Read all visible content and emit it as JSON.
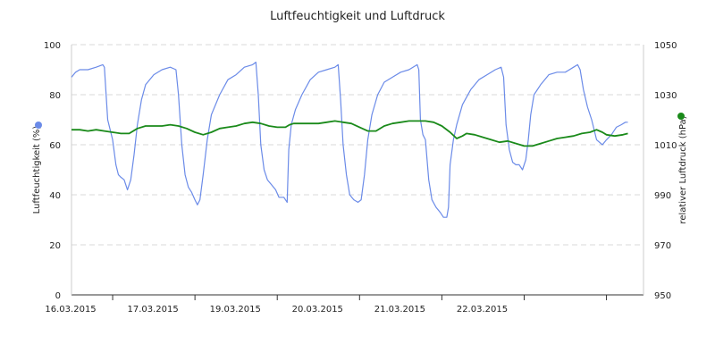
{
  "chart_data": {
    "type": "line",
    "title": "Luftfeuchtigkeit und Luftdruck",
    "y_left": {
      "label": "Luftfeuchtigkeit (%)",
      "range": [
        0,
        100
      ],
      "ticks": [
        "0",
        "20",
        "40",
        "60",
        "80",
        "100"
      ],
      "color": "#6b8be8"
    },
    "y_right": {
      "label": "relativer Luftdruck (hPa)",
      "range": [
        950,
        1050
      ],
      "ticks": [
        "950",
        "970",
        "990",
        "1010",
        "1030",
        "1050"
      ],
      "color": "#1a8a1a"
    },
    "x_range": [
      0,
      6.95
    ],
    "x_ticks": [
      {
        "x": 0.5,
        "label": "16.03.2015"
      },
      {
        "x": 1.5,
        "label": "17.03.2015"
      },
      {
        "x": 2.5,
        "label": "19.03.2015"
      },
      {
        "x": 3.5,
        "label": "20.03.2015"
      },
      {
        "x": 4.5,
        "label": "21.03.2015"
      },
      {
        "x": 5.5,
        "label": "22.03.2015"
      }
    ],
    "grid": "horizontal-dashed",
    "series": [
      {
        "axis": "left",
        "color": "#6b8be8",
        "points": [
          [
            0.0,
            87
          ],
          [
            0.05,
            89
          ],
          [
            0.1,
            90
          ],
          [
            0.2,
            90
          ],
          [
            0.3,
            91
          ],
          [
            0.38,
            92
          ],
          [
            0.4,
            91
          ],
          [
            0.44,
            70
          ],
          [
            0.5,
            62
          ],
          [
            0.54,
            52
          ],
          [
            0.57,
            48
          ],
          [
            0.6,
            47
          ],
          [
            0.64,
            46
          ],
          [
            0.68,
            42
          ],
          [
            0.72,
            46
          ],
          [
            0.76,
            56
          ],
          [
            0.8,
            68
          ],
          [
            0.85,
            78
          ],
          [
            0.9,
            84
          ],
          [
            1.0,
            88
          ],
          [
            1.1,
            90
          ],
          [
            1.2,
            91
          ],
          [
            1.27,
            90
          ],
          [
            1.3,
            80
          ],
          [
            1.34,
            60
          ],
          [
            1.38,
            48
          ],
          [
            1.42,
            43
          ],
          [
            1.46,
            41
          ],
          [
            1.5,
            38
          ],
          [
            1.53,
            36
          ],
          [
            1.56,
            38
          ],
          [
            1.6,
            48
          ],
          [
            1.65,
            62
          ],
          [
            1.7,
            72
          ],
          [
            1.8,
            80
          ],
          [
            1.9,
            86
          ],
          [
            2.0,
            88
          ],
          [
            2.1,
            91
          ],
          [
            2.2,
            92
          ],
          [
            2.24,
            93
          ],
          [
            2.27,
            80
          ],
          [
            2.3,
            60
          ],
          [
            2.34,
            50
          ],
          [
            2.38,
            46
          ],
          [
            2.43,
            44
          ],
          [
            2.48,
            42
          ],
          [
            2.52,
            39
          ],
          [
            2.58,
            39
          ],
          [
            2.62,
            37
          ],
          [
            2.64,
            58
          ],
          [
            2.67,
            68
          ],
          [
            2.72,
            74
          ],
          [
            2.8,
            80
          ],
          [
            2.9,
            86
          ],
          [
            3.0,
            89
          ],
          [
            3.1,
            90
          ],
          [
            3.2,
            91
          ],
          [
            3.24,
            92
          ],
          [
            3.27,
            78
          ],
          [
            3.3,
            60
          ],
          [
            3.34,
            48
          ],
          [
            3.38,
            40
          ],
          [
            3.43,
            38
          ],
          [
            3.48,
            37
          ],
          [
            3.52,
            38
          ],
          [
            3.56,
            48
          ],
          [
            3.6,
            62
          ],
          [
            3.65,
            72
          ],
          [
            3.72,
            80
          ],
          [
            3.8,
            85
          ],
          [
            3.9,
            87
          ],
          [
            4.0,
            89
          ],
          [
            4.1,
            90
          ],
          [
            4.2,
            92
          ],
          [
            4.22,
            90
          ],
          [
            4.24,
            70
          ],
          [
            4.27,
            64
          ],
          [
            4.3,
            62
          ],
          [
            4.34,
            46
          ],
          [
            4.38,
            38
          ],
          [
            4.43,
            35
          ],
          [
            4.48,
            33
          ],
          [
            4.52,
            31
          ],
          [
            4.56,
            31
          ],
          [
            4.58,
            35
          ],
          [
            4.6,
            52
          ],
          [
            4.64,
            62
          ],
          [
            4.68,
            68
          ],
          [
            4.75,
            76
          ],
          [
            4.85,
            82
          ],
          [
            4.95,
            86
          ],
          [
            5.05,
            88
          ],
          [
            5.15,
            90
          ],
          [
            5.22,
            91
          ],
          [
            5.25,
            87
          ],
          [
            5.28,
            68
          ],
          [
            5.32,
            58
          ],
          [
            5.36,
            53
          ],
          [
            5.4,
            52
          ],
          [
            5.44,
            52
          ],
          [
            5.48,
            50
          ],
          [
            5.52,
            54
          ],
          [
            5.55,
            62
          ],
          [
            5.58,
            72
          ],
          [
            5.62,
            80
          ],
          [
            5.7,
            84
          ],
          [
            5.8,
            88
          ],
          [
            5.9,
            89
          ],
          [
            6.0,
            89
          ],
          [
            6.1,
            91
          ],
          [
            6.15,
            92
          ],
          [
            6.18,
            90
          ],
          [
            6.22,
            82
          ],
          [
            6.27,
            75
          ],
          [
            6.32,
            70
          ],
          [
            6.38,
            62
          ],
          [
            6.45,
            60
          ],
          [
            6.5,
            62
          ],
          [
            6.56,
            64
          ],
          [
            6.62,
            67
          ],
          [
            6.68,
            68
          ],
          [
            6.73,
            69
          ],
          [
            6.76,
            69
          ]
        ]
      },
      {
        "axis": "right",
        "color": "#1a8a1a",
        "points": [
          [
            0.0,
            1016
          ],
          [
            0.1,
            1016
          ],
          [
            0.2,
            1015.5
          ],
          [
            0.3,
            1016
          ],
          [
            0.4,
            1015.5
          ],
          [
            0.5,
            1015
          ],
          [
            0.6,
            1014.5
          ],
          [
            0.7,
            1014.5
          ],
          [
            0.8,
            1016.5
          ],
          [
            0.9,
            1017.5
          ],
          [
            1.0,
            1017.5
          ],
          [
            1.1,
            1017.5
          ],
          [
            1.2,
            1018
          ],
          [
            1.3,
            1017.5
          ],
          [
            1.4,
            1016.5
          ],
          [
            1.5,
            1015
          ],
          [
            1.6,
            1014
          ],
          [
            1.7,
            1015
          ],
          [
            1.8,
            1016.5
          ],
          [
            1.9,
            1017
          ],
          [
            2.0,
            1017.5
          ],
          [
            2.1,
            1018.5
          ],
          [
            2.2,
            1019
          ],
          [
            2.3,
            1018.5
          ],
          [
            2.4,
            1017.5
          ],
          [
            2.5,
            1017
          ],
          [
            2.6,
            1017
          ],
          [
            2.65,
            1018
          ],
          [
            2.7,
            1018.5
          ],
          [
            2.8,
            1018.5
          ],
          [
            2.9,
            1018.5
          ],
          [
            3.0,
            1018.5
          ],
          [
            3.1,
            1019
          ],
          [
            3.2,
            1019.5
          ],
          [
            3.3,
            1019
          ],
          [
            3.4,
            1018.5
          ],
          [
            3.5,
            1017
          ],
          [
            3.6,
            1015.5
          ],
          [
            3.7,
            1015.5
          ],
          [
            3.8,
            1017.5
          ],
          [
            3.9,
            1018.5
          ],
          [
            4.0,
            1019
          ],
          [
            4.1,
            1019.5
          ],
          [
            4.2,
            1019.5
          ],
          [
            4.3,
            1019.5
          ],
          [
            4.4,
            1019
          ],
          [
            4.5,
            1017.5
          ],
          [
            4.6,
            1015
          ],
          [
            4.68,
            1012.5
          ],
          [
            4.75,
            1013.5
          ],
          [
            4.8,
            1014.5
          ],
          [
            4.9,
            1014
          ],
          [
            5.0,
            1013
          ],
          [
            5.1,
            1012
          ],
          [
            5.2,
            1011
          ],
          [
            5.3,
            1011.5
          ],
          [
            5.4,
            1010.5
          ],
          [
            5.5,
            1009.5
          ],
          [
            5.6,
            1009.5
          ],
          [
            5.7,
            1010.5
          ],
          [
            5.8,
            1011.5
          ],
          [
            5.9,
            1012.5
          ],
          [
            6.0,
            1013
          ],
          [
            6.1,
            1013.5
          ],
          [
            6.2,
            1014.5
          ],
          [
            6.3,
            1015
          ],
          [
            6.38,
            1016
          ],
          [
            6.45,
            1015
          ],
          [
            6.5,
            1014
          ],
          [
            6.6,
            1013.5
          ],
          [
            6.7,
            1014
          ],
          [
            6.76,
            1014.5
          ]
        ]
      }
    ]
  }
}
